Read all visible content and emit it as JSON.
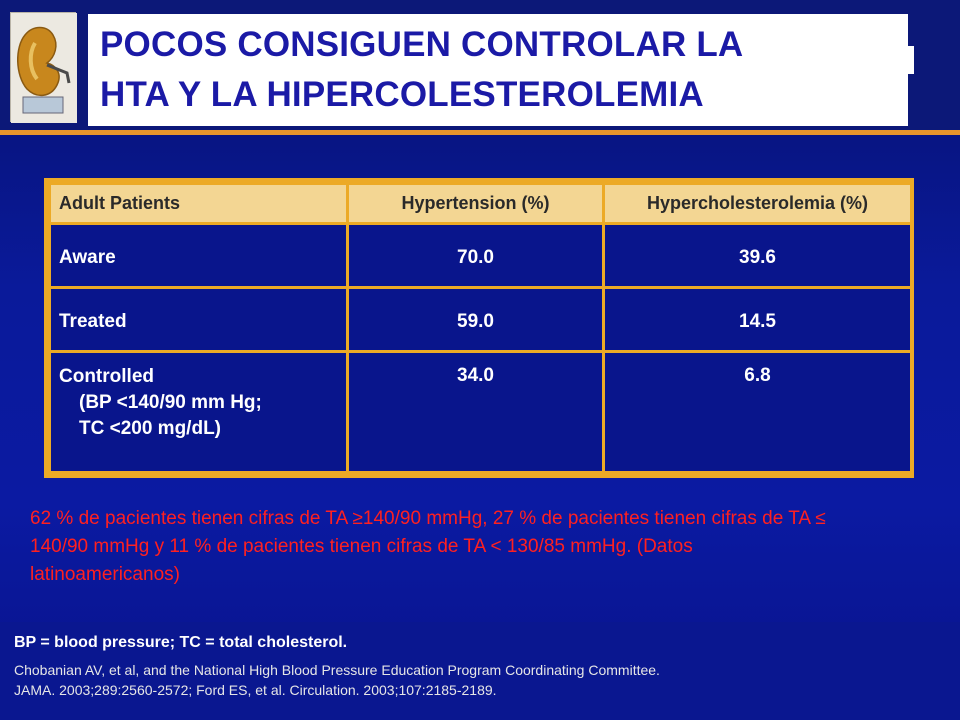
{
  "slide": {
    "title_line1": "POCOS  CONSIGUEN CONTROLAR LA",
    "title_line2": "HTA Y LA HIPERCOLESTEROLEMIA",
    "title_color": "#1b1aa6",
    "accent_color": "#e7952c"
  },
  "table": {
    "headers": [
      "Adult Patients",
      "Hypertension (%)",
      "Hypercholesterolemia (%)"
    ],
    "rows": [
      {
        "label": "Aware",
        "sub": [],
        "hypertension": "70.0",
        "hypercholesterolemia": "39.6"
      },
      {
        "label": "Treated",
        "sub": [],
        "hypertension": "59.0",
        "hypercholesterolemia": "14.5"
      },
      {
        "label": "Controlled",
        "sub": [
          "(BP <140/90 mm Hg;",
          "TC <200 mg/dL)"
        ],
        "hypertension": "34.0",
        "hypercholesterolemia": "6.8"
      }
    ]
  },
  "note": {
    "text": "62 % de pacientes tienen cifras de TA ≥140/90 mmHg, 27 % de pacientes tienen cifras de TA ≤ 140/90 mmHg y  11 % de pacientes tienen cifras de TA < 130/85 mmHg. (Datos latinoamericanos)",
    "color": "#ff2020"
  },
  "footer": {
    "abbrev": "BP = blood pressure; TC = total cholesterol.",
    "ref_line1": "Chobanian AV, et al, and the National High Blood Pressure Education Program Coordinating Committee.",
    "ref_line2": "JAMA. 2003;289:2560-2572; Ford ES, et al. Circulation. 2003;107:2185-2189."
  }
}
